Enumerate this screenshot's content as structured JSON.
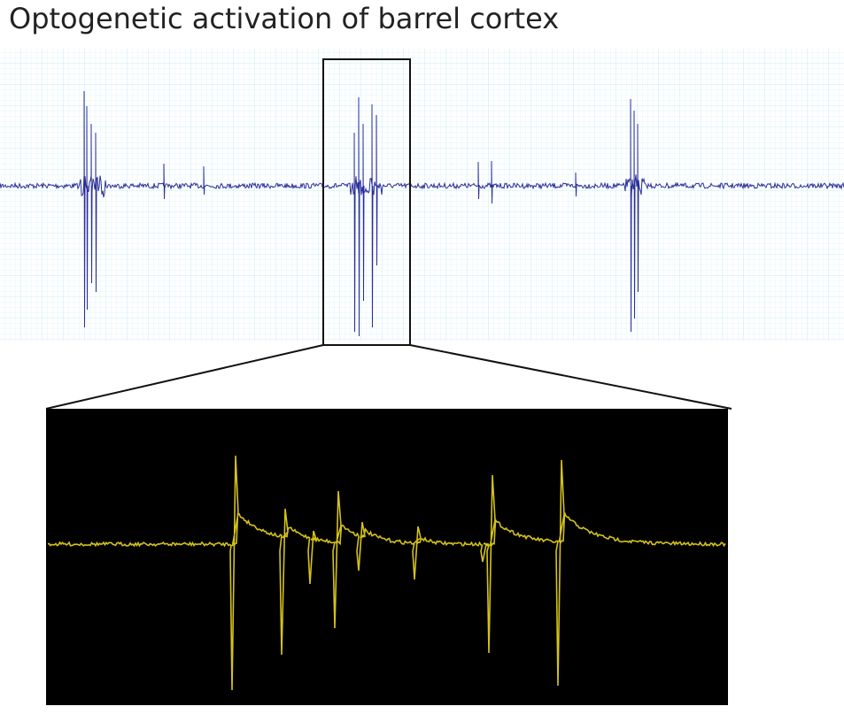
{
  "title": "Optogenetic activation of barrel cortex"
}
